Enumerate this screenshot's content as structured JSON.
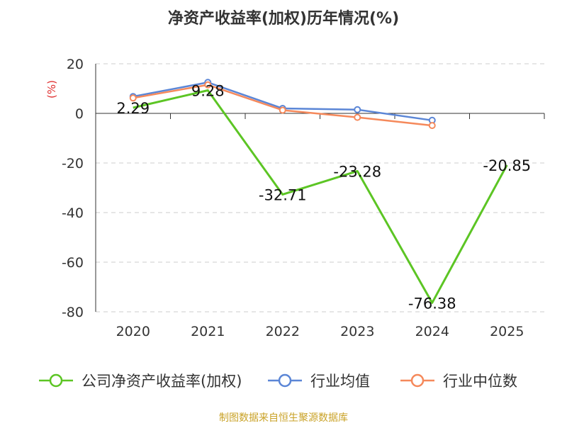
{
  "chart_data": {
    "type": "line",
    "title": "净资产收益率(加权)历年情况(%)",
    "ylabel": "(%)",
    "xlabel": "",
    "categories": [
      "2020",
      "2021",
      "2022",
      "2023",
      "2024",
      "2025"
    ],
    "ylim": [
      -80,
      20
    ],
    "yticks": [
      20,
      0,
      -20,
      -40,
      -60,
      -80
    ],
    "grid": true,
    "legend_position": "bottom",
    "series": [
      {
        "name": "公司净资产收益率(加权)",
        "color": "#5cc524",
        "values": [
          2.29,
          9.28,
          -32.71,
          -23.28,
          -76.38,
          -20.85
        ],
        "show_labels": true
      },
      {
        "name": "行业均值",
        "color": "#5b86d6",
        "values": [
          6.8,
          12.5,
          2.0,
          1.5,
          -2.8,
          null
        ],
        "show_labels": false
      },
      {
        "name": "行业中位数",
        "color": "#f5895b",
        "values": [
          6.2,
          11.5,
          1.3,
          -1.6,
          -4.9,
          null
        ],
        "show_labels": false
      }
    ],
    "data_labels": [
      "2.29",
      "9.28",
      "-32.71",
      "-23.28",
      "-76.38",
      "-20.85"
    ]
  },
  "source_note": "制图数据来自恒生聚源数据库"
}
